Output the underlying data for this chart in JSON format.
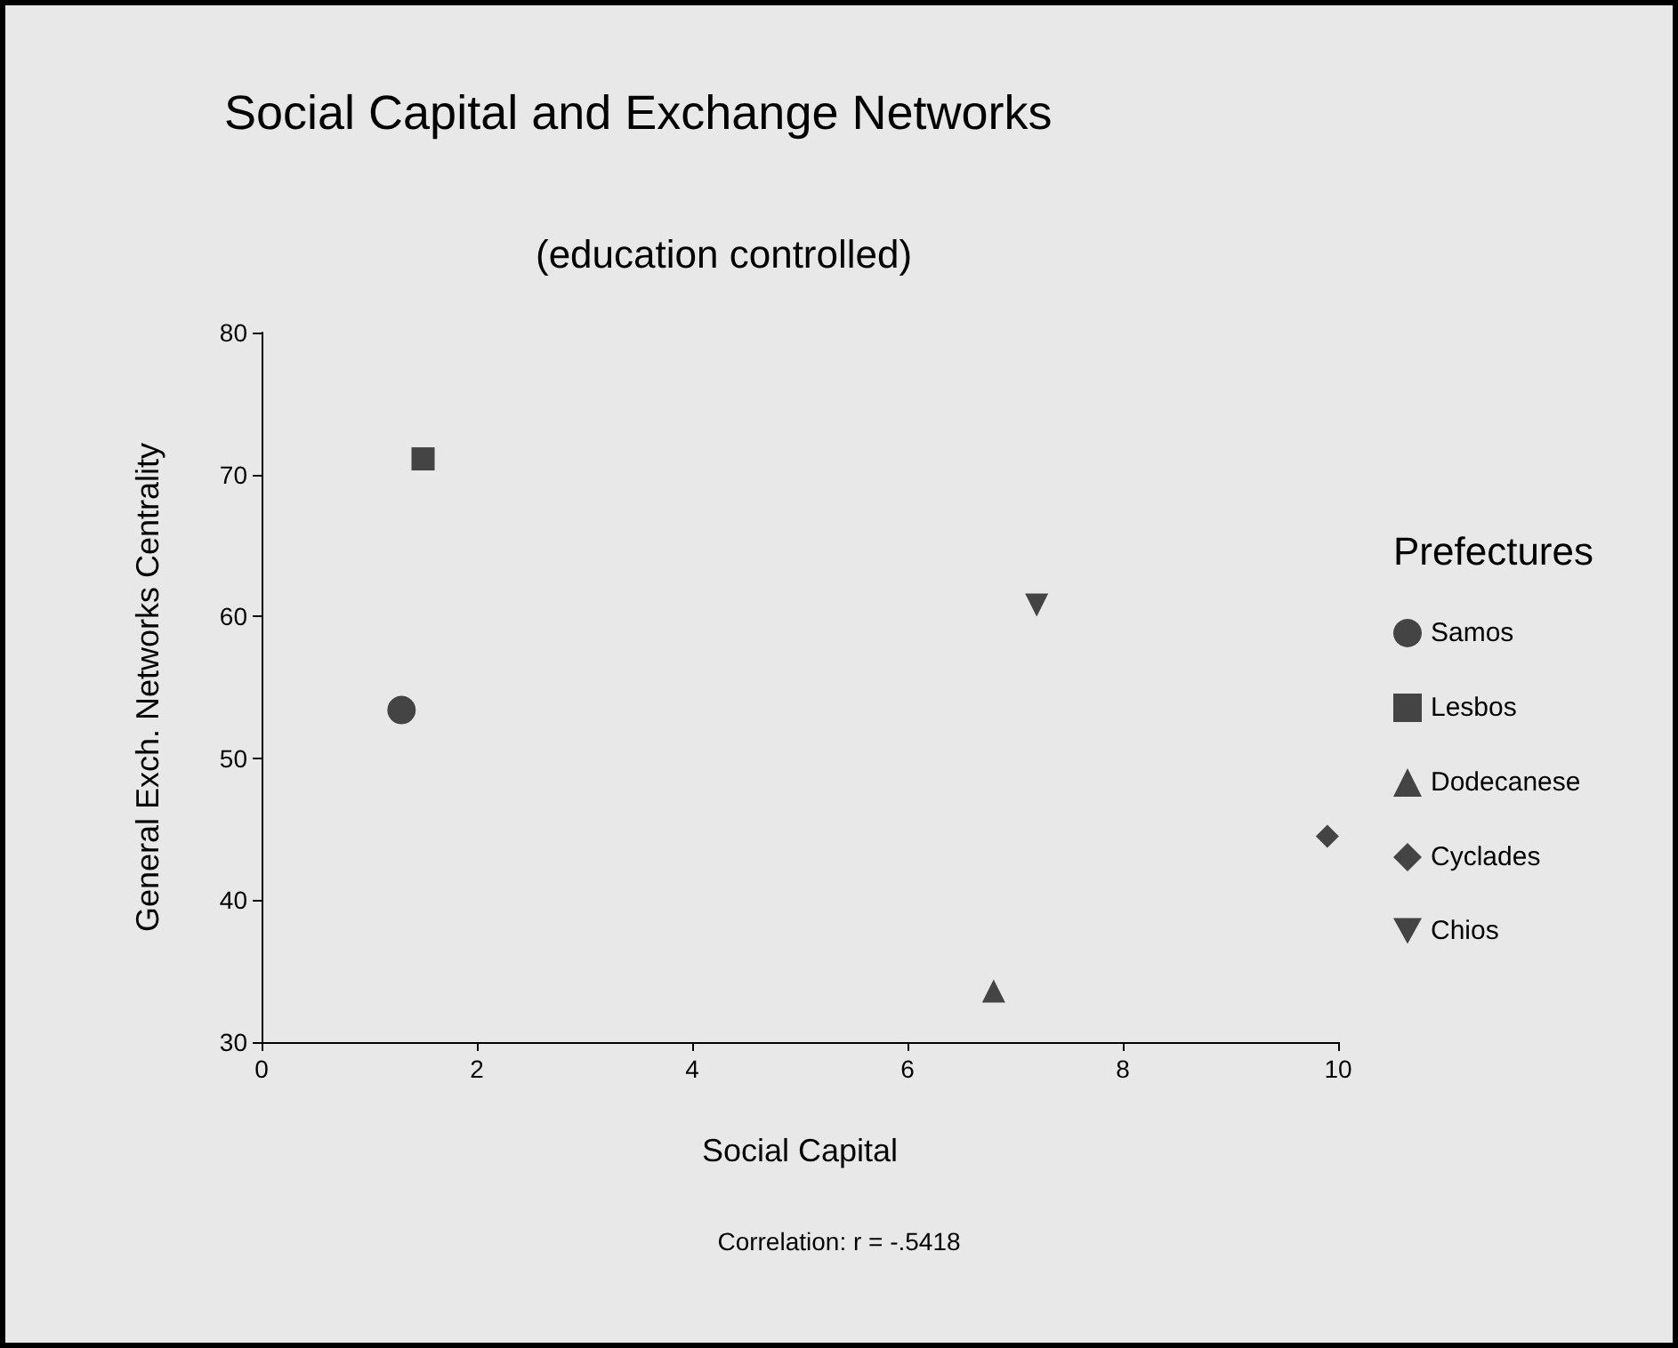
{
  "chart_data": {
    "type": "scatter",
    "title": "Social Capital and Exchange Networks",
    "subtitle": "(education controlled)",
    "xlabel": "Social Capital",
    "ylabel": "General Exch. Networks Centrality",
    "legend_title": "Prefectures",
    "annotations": [
      "Correlation: r = -.5418"
    ],
    "series": [
      {
        "name": "Samos",
        "color": "#1a1a1a",
        "marker": "circle",
        "x": [
          1.3
        ],
        "values": [
          53.4
        ]
      },
      {
        "name": "Lesbos",
        "color": "#1a1a1a",
        "marker": "square",
        "x": [
          1.5
        ],
        "values": [
          71.1
        ]
      },
      {
        "name": "Dodecanese",
        "color": "#1a1a1a",
        "marker": "triangle",
        "x": [
          6.8
        ],
        "values": [
          33.6
        ]
      },
      {
        "name": "Cyclades",
        "color": "#1a1a1a",
        "marker": "diamond",
        "x": [
          9.9
        ],
        "values": [
          44.5
        ]
      },
      {
        "name": "Chios",
        "color": "#1a1a1a",
        "marker": "triangle-down",
        "x": [
          7.2
        ],
        "values": [
          60.8
        ]
      }
    ],
    "xlim": [
      0,
      10
    ],
    "xticks": [
      0,
      2,
      4,
      6,
      8,
      10
    ],
    "ylim": [
      30,
      80
    ],
    "yticks": [
      30,
      40,
      50,
      60,
      70,
      80
    ],
    "grid": false,
    "legend": "right"
  }
}
